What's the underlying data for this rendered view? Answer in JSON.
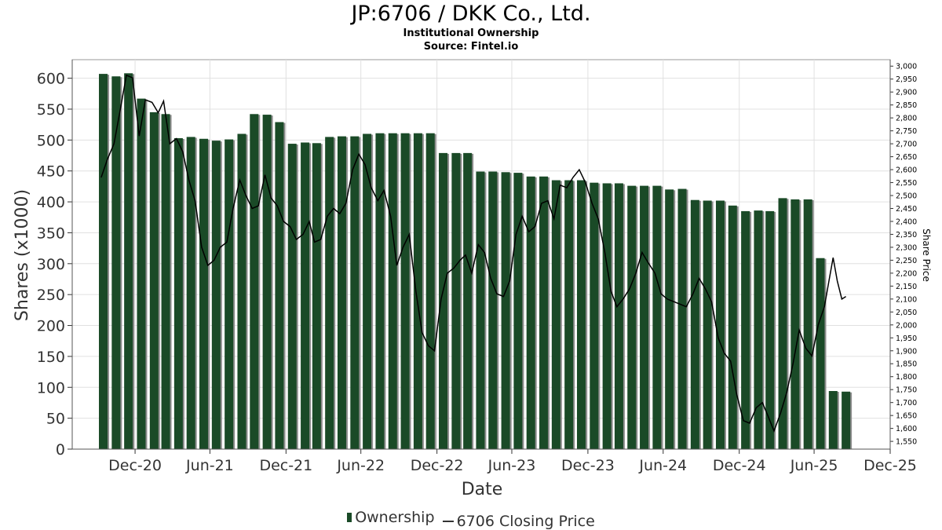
{
  "header": {
    "title": "JP:6706 / DKK Co., Ltd.",
    "subtitle": "Institutional Ownership",
    "source": "Source: Fintel.io"
  },
  "legend": {
    "ownership_label": "Ownership",
    "price_label": "6706 Closing Price"
  },
  "colors": {
    "bar": "#1a4a27",
    "bar_shadow": "#8c8c8c",
    "line": "#000000",
    "grid": "#e0e0e0"
  },
  "chart_data": {
    "type": "bar",
    "title": "JP:6706 / DKK Co., Ltd.",
    "subtitle": "Institutional Ownership",
    "xlabel": "Date",
    "ylabel": "Shares (x1000)",
    "y2label": "Share Price",
    "ylim": [
      0,
      630
    ],
    "y2lim": [
      1520,
      3025
    ],
    "x_range": [
      "2020-08-01",
      "2025-12-31"
    ],
    "yticks": [
      0,
      50,
      100,
      150,
      200,
      250,
      300,
      350,
      400,
      450,
      500,
      550,
      600
    ],
    "y2ticks": [
      1550,
      1600,
      1650,
      1700,
      1750,
      1800,
      1850,
      1900,
      1950,
      2000,
      2050,
      2100,
      2150,
      2200,
      2250,
      2300,
      2350,
      2400,
      2450,
      2500,
      2550,
      2600,
      2650,
      2700,
      2750,
      2800,
      2850,
      2900,
      2950,
      3000
    ],
    "y2tick_labels": [
      "1,550",
      "1,600",
      "1,650",
      "1,700",
      "1,750",
      "1,800",
      "1,850",
      "1,900",
      "1,950",
      "2,000",
      "2,050",
      "2,100",
      "2,150",
      "2,200",
      "2,250",
      "2,300",
      "2,350",
      "2,400",
      "2,450",
      "2,500",
      "2,550",
      "2,600",
      "2,650",
      "2,700",
      "2,750",
      "2,800",
      "2,850",
      "2,900",
      "2,950",
      "3,000"
    ],
    "xticks": [
      {
        "date": "2020-12-31",
        "label": "Dec-20"
      },
      {
        "date": "2021-06-30",
        "label": "Jun-21"
      },
      {
        "date": "2021-12-31",
        "label": "Dec-21"
      },
      {
        "date": "2022-06-30",
        "label": "Jun-22"
      },
      {
        "date": "2022-12-31",
        "label": "Dec-22"
      },
      {
        "date": "2023-06-30",
        "label": "Jun-23"
      },
      {
        "date": "2023-12-31",
        "label": "Dec-23"
      },
      {
        "date": "2024-06-30",
        "label": "Jun-24"
      },
      {
        "date": "2024-12-31",
        "label": "Dec-24"
      },
      {
        "date": "2025-06-30",
        "label": "Jun-25"
      },
      {
        "date": "2025-12-31",
        "label": "Dec-25"
      }
    ],
    "grid": true,
    "legend_position": "bottom",
    "series": [
      {
        "name": "Ownership",
        "type": "bar",
        "dates": [
          "2020-10-15",
          "2020-11-15",
          "2020-12-15",
          "2021-01-15",
          "2021-02-15",
          "2021-03-15",
          "2021-04-15",
          "2021-05-15",
          "2021-06-15",
          "2021-07-15",
          "2021-08-15",
          "2021-09-15",
          "2021-10-15",
          "2021-11-15",
          "2021-12-15",
          "2022-01-15",
          "2022-02-15",
          "2022-03-15",
          "2022-04-15",
          "2022-05-15",
          "2022-06-15",
          "2022-07-15",
          "2022-08-15",
          "2022-09-15",
          "2022-10-15",
          "2022-11-15",
          "2022-12-15",
          "2023-01-15",
          "2023-02-15",
          "2023-03-15",
          "2023-04-15",
          "2023-05-15",
          "2023-06-15",
          "2023-07-15",
          "2023-08-15",
          "2023-09-15",
          "2023-10-15",
          "2023-11-15",
          "2023-12-15",
          "2024-01-15",
          "2024-02-15",
          "2024-03-15",
          "2024-04-15",
          "2024-05-15",
          "2024-06-15",
          "2024-07-15",
          "2024-08-15",
          "2024-09-15",
          "2024-10-15",
          "2024-11-15",
          "2024-12-15",
          "2025-01-15",
          "2025-02-15",
          "2025-03-15",
          "2025-04-15",
          "2025-05-15",
          "2025-06-15",
          "2025-07-15",
          "2025-08-15",
          "2025-09-15"
        ],
        "values": [
          607,
          603,
          608,
          567,
          545,
          542,
          503,
          505,
          502,
          499,
          501,
          510,
          542,
          541,
          529,
          494,
          496,
          495,
          505,
          506,
          506,
          510,
          511,
          511,
          511,
          511,
          511,
          479,
          479,
          479,
          449,
          449,
          448,
          447,
          441,
          441,
          435,
          435,
          435,
          431,
          430,
          430,
          426,
          426,
          426,
          420,
          421,
          403,
          402,
          402,
          394,
          385,
          386,
          385,
          406,
          404,
          404,
          309,
          94,
          93
        ]
      },
      {
        "name": "6706 Closing Price",
        "type": "line",
        "dates": [
          "2020-10-10",
          "2020-10-25",
          "2020-11-10",
          "2020-11-25",
          "2020-12-10",
          "2020-12-25",
          "2021-01-10",
          "2021-01-25",
          "2021-02-10",
          "2021-02-25",
          "2021-03-10",
          "2021-03-25",
          "2021-04-10",
          "2021-04-25",
          "2021-05-10",
          "2021-05-25",
          "2021-06-10",
          "2021-06-25",
          "2021-07-10",
          "2021-07-25",
          "2021-08-10",
          "2021-08-25",
          "2021-09-10",
          "2021-09-25",
          "2021-10-10",
          "2021-10-25",
          "2021-11-10",
          "2021-11-25",
          "2021-12-10",
          "2021-12-25",
          "2022-01-10",
          "2022-01-25",
          "2022-02-10",
          "2022-02-25",
          "2022-03-10",
          "2022-03-25",
          "2022-04-10",
          "2022-04-25",
          "2022-05-10",
          "2022-05-25",
          "2022-06-10",
          "2022-06-25",
          "2022-07-10",
          "2022-07-25",
          "2022-08-10",
          "2022-08-25",
          "2022-09-10",
          "2022-09-25",
          "2022-10-10",
          "2022-10-25",
          "2022-11-10",
          "2022-11-25",
          "2022-12-10",
          "2022-12-25",
          "2023-01-10",
          "2023-01-25",
          "2023-02-10",
          "2023-02-25",
          "2023-03-10",
          "2023-03-25",
          "2023-04-10",
          "2023-04-25",
          "2023-05-10",
          "2023-05-25",
          "2023-06-10",
          "2023-06-25",
          "2023-07-10",
          "2023-07-25",
          "2023-08-10",
          "2023-08-25",
          "2023-09-10",
          "2023-09-25",
          "2023-10-10",
          "2023-10-25",
          "2023-11-10",
          "2023-11-25",
          "2023-12-10",
          "2023-12-25",
          "2024-01-10",
          "2024-01-25",
          "2024-02-10",
          "2024-02-25",
          "2024-03-10",
          "2024-03-25",
          "2024-04-10",
          "2024-04-25",
          "2024-05-10",
          "2024-05-25",
          "2024-06-10",
          "2024-06-25",
          "2024-07-10",
          "2024-07-25",
          "2024-08-10",
          "2024-08-25",
          "2024-09-10",
          "2024-09-25",
          "2024-10-10",
          "2024-10-25",
          "2024-11-10",
          "2024-11-25",
          "2024-12-10",
          "2024-12-25",
          "2025-01-10",
          "2025-01-25",
          "2025-02-10",
          "2025-02-25",
          "2025-03-10",
          "2025-03-25",
          "2025-04-10",
          "2025-04-25",
          "2025-05-10",
          "2025-05-25",
          "2025-06-10",
          "2025-06-25",
          "2025-07-10",
          "2025-07-25",
          "2025-08-05",
          "2025-08-15",
          "2025-08-25",
          "2025-09-05",
          "2025-09-15"
        ],
        "values": [
          2570,
          2640,
          2700,
          2830,
          2965,
          2955,
          2730,
          2870,
          2860,
          2820,
          2865,
          2700,
          2720,
          2670,
          2560,
          2480,
          2300,
          2230,
          2250,
          2300,
          2320,
          2450,
          2560,
          2500,
          2450,
          2460,
          2580,
          2490,
          2460,
          2400,
          2380,
          2330,
          2350,
          2400,
          2320,
          2330,
          2420,
          2450,
          2430,
          2470,
          2600,
          2660,
          2620,
          2530,
          2480,
          2520,
          2420,
          2230,
          2300,
          2350,
          2130,
          1970,
          1920,
          1900,
          2100,
          2200,
          2220,
          2250,
          2270,
          2200,
          2310,
          2280,
          2180,
          2120,
          2110,
          2170,
          2350,
          2420,
          2360,
          2380,
          2470,
          2480,
          2410,
          2540,
          2530,
          2570,
          2600,
          2550,
          2470,
          2410,
          2280,
          2130,
          2070,
          2100,
          2140,
          2200,
          2280,
          2240,
          2200,
          2120,
          2100,
          2090,
          2080,
          2070,
          2120,
          2180,
          2140,
          2090,
          1950,
          1890,
          1860,
          1730,
          1630,
          1620,
          1680,
          1700,
          1650,
          1590,
          1660,
          1740,
          1850,
          1980,
          1910,
          1880,
          2000,
          2070,
          2170,
          2260,
          2170,
          2100,
          2110
        ]
      }
    ]
  }
}
